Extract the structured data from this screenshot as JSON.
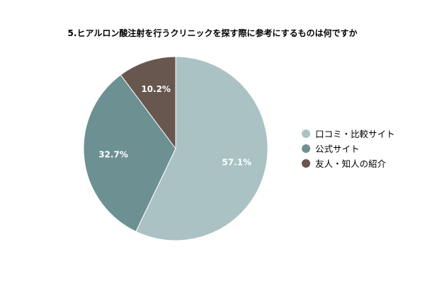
{
  "chart_data": {
    "type": "pie",
    "title": "5.ヒアルロン酸注射を行うクリニックを探す際に参考にするものは何ですか",
    "categories": [
      "口コミ・比較サイト",
      "公式サイト",
      "友人・知人の紹介"
    ],
    "values": [
      57.1,
      32.7,
      10.2
    ],
    "value_labels": [
      "57.1%",
      "32.7%",
      "10.2%"
    ],
    "colors": [
      "#aac2c3",
      "#6d9093",
      "#67574e"
    ],
    "legend_position": "right"
  }
}
